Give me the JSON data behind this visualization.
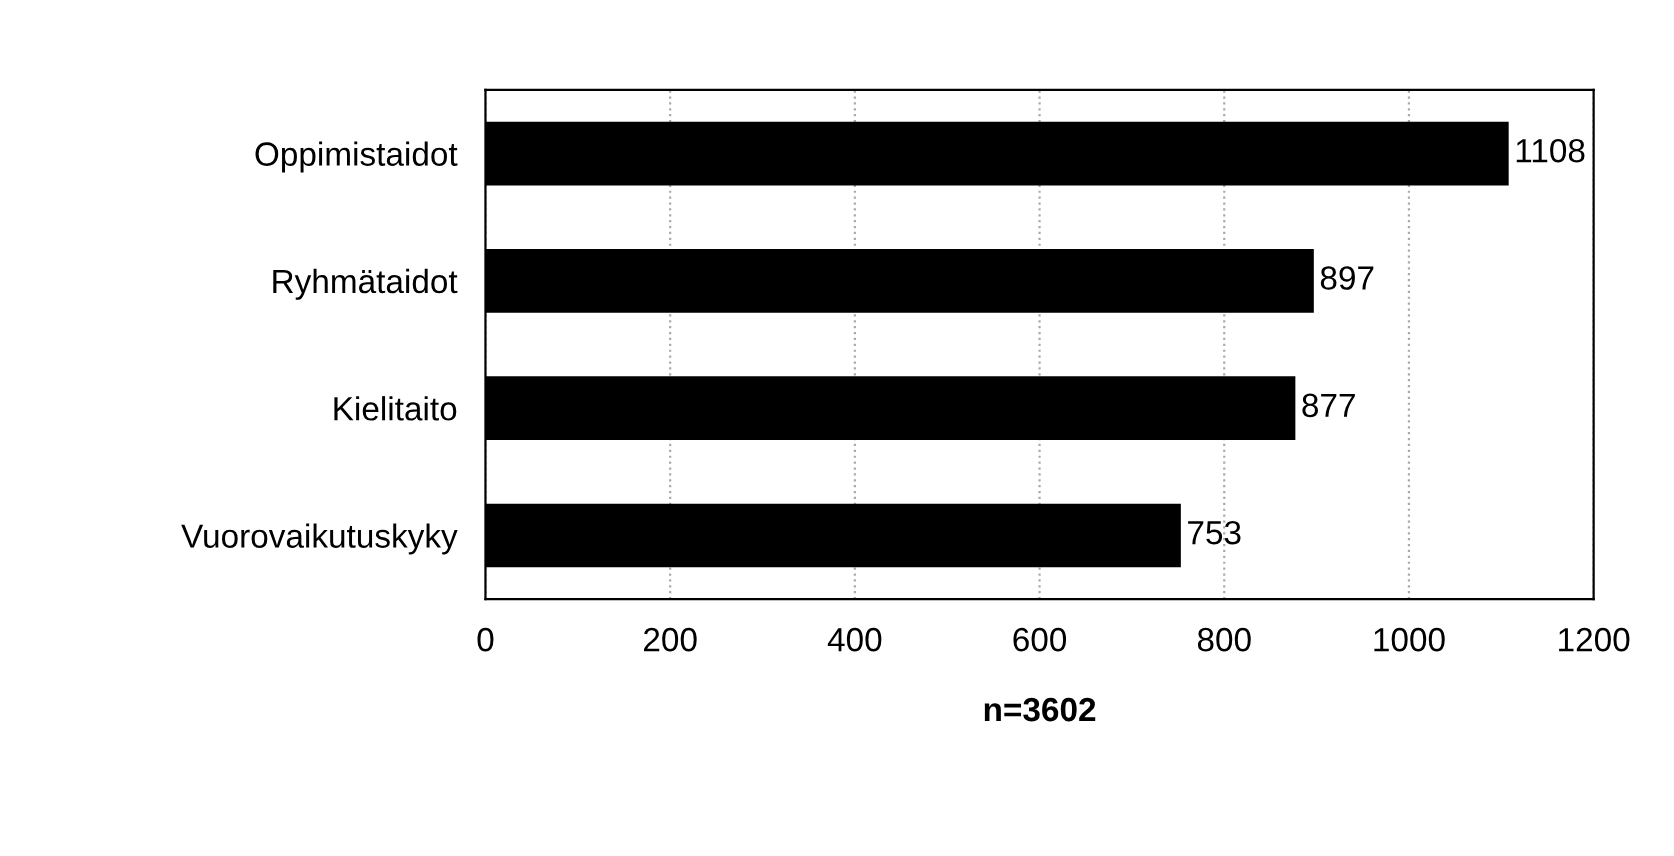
{
  "chart_data": {
    "type": "bar",
    "orientation": "horizontal",
    "categories": [
      "Oppimistaidot",
      "Ryhmätaidot",
      "Kielitaito",
      "Vuorovaikutuskyky"
    ],
    "values": [
      1108,
      897,
      877,
      753
    ],
    "color": "#000000",
    "xlim": [
      0,
      1200
    ],
    "xticks": [
      0,
      200,
      400,
      600,
      800,
      1000,
      1200
    ],
    "xlabel": "n=3602",
    "data_labels": true,
    "grid": "x",
    "legend": false
  }
}
